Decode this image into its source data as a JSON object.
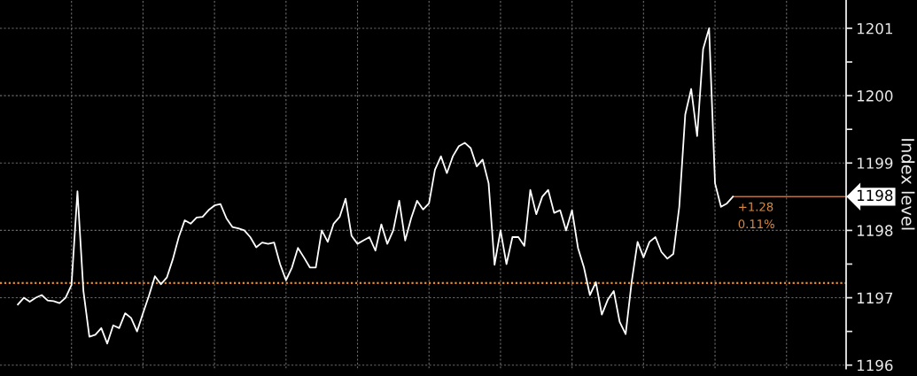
{
  "chart_data": {
    "type": "line",
    "ylabel": "Index level",
    "categories": [
      null,
      null,
      null,
      null,
      null,
      null,
      null,
      null,
      null,
      null,
      null,
      null,
      null,
      null,
      null,
      null,
      null,
      null,
      null,
      null,
      null,
      null,
      null,
      null,
      null,
      null,
      null,
      null,
      null,
      null,
      null,
      null,
      null,
      null,
      null,
      null,
      null,
      null,
      null,
      null,
      null,
      null,
      null,
      null,
      null,
      null,
      null,
      null,
      null,
      null,
      null,
      null,
      null,
      null,
      null,
      null,
      null,
      null,
      null,
      null,
      null,
      null,
      null,
      null,
      null,
      null,
      null,
      null,
      null,
      null,
      null,
      null,
      null,
      null,
      null,
      null,
      null,
      null,
      null,
      null,
      null,
      null,
      null,
      null,
      null,
      null,
      null,
      null,
      null,
      null,
      null,
      null,
      null,
      null,
      null,
      null,
      null,
      null,
      null,
      null,
      null,
      null,
      null,
      null,
      null,
      null,
      null,
      null,
      null,
      null,
      null,
      null,
      null,
      null,
      null,
      null,
      null,
      null,
      null,
      null,
      null,
      null,
      null,
      null,
      null,
      null,
      null,
      null,
      null,
      null,
      null,
      null,
      null,
      null,
      null,
      null,
      null,
      null,
      null
    ],
    "series": [
      {
        "color": "#ffffff",
        "values": [
          1196.9,
          1197.0,
          1196.94,
          1197.0,
          1197.04,
          1196.96,
          1196.95,
          1196.92,
          1197.0,
          1197.19,
          1198.58,
          1197.1,
          1196.42,
          1196.45,
          1196.55,
          1196.32,
          1196.59,
          1196.55,
          1196.77,
          1196.7,
          1196.5,
          1196.77,
          1197.03,
          1197.32,
          1197.2,
          1197.3,
          1197.57,
          1197.9,
          1198.15,
          1198.1,
          1198.19,
          1198.2,
          1198.3,
          1198.37,
          1198.39,
          1198.18,
          1198.05,
          1198.03,
          1198.0,
          1197.9,
          1197.75,
          1197.82,
          1197.8,
          1197.82,
          1197.5,
          1197.26,
          1197.45,
          1197.74,
          1197.6,
          1197.45,
          1197.45,
          1198.0,
          1197.83,
          1198.1,
          1198.2,
          1198.47,
          1197.92,
          1197.8,
          1197.85,
          1197.9,
          1197.7,
          1198.09,
          1197.8,
          1198.0,
          1198.44,
          1197.85,
          1198.18,
          1198.44,
          1198.31,
          1198.4,
          1198.9,
          1199.1,
          1198.85,
          1199.1,
          1199.25,
          1199.3,
          1199.22,
          1198.95,
          1199.05,
          1198.7,
          1197.49,
          1198.0,
          1197.5,
          1197.9,
          1197.9,
          1197.77,
          1198.6,
          1198.24,
          1198.5,
          1198.6,
          1198.26,
          1198.3,
          1198.0,
          1198.3,
          1197.74,
          1197.45,
          1197.04,
          1197.23,
          1196.75,
          1196.97,
          1197.1,
          1196.64,
          1196.46,
          1197.23,
          1197.83,
          1197.6,
          1197.83,
          1197.9,
          1197.68,
          1197.58,
          1197.65,
          1198.35,
          1199.72,
          1200.1,
          1199.4,
          1200.69,
          1201.0,
          1198.7,
          1198.35,
          1198.4,
          1198.5,
          null,
          null,
          null,
          null,
          null,
          null,
          null,
          null,
          null,
          null,
          null,
          null,
          null,
          null,
          null,
          null,
          null,
          null
        ]
      }
    ],
    "ylim": [
      1195.95,
      1201.42
    ],
    "yticks": [
      1196,
      {
        "value": 1196.5,
        "label": null
      },
      1197,
      {
        "value": 1197.5,
        "label": null
      },
      1198,
      {
        "value": 1198.5,
        "label": null
      },
      1199,
      {
        "value": 1199.5,
        "label": null
      },
      1200,
      {
        "value": 1200.5,
        "label": null
      },
      1201
    ],
    "ref_lines": [
      {
        "axis": "y",
        "value": 1197.22,
        "color": "#e8862a",
        "line_style": "dotted"
      },
      {
        "axis": "y",
        "value": 1198.5,
        "label": "1198",
        "color": "#b8704a",
        "line_style": "solid"
      }
    ],
    "annotations": [
      "+1.28",
      "0.11%"
    ],
    "grid": true,
    "tick_labels": "y"
  }
}
